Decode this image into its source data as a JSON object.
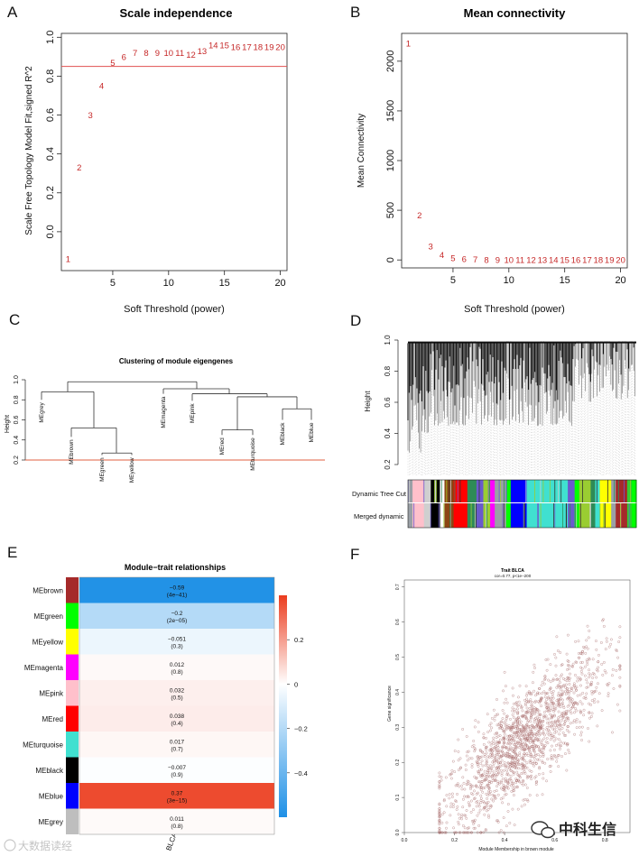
{
  "panels": {
    "A": "A",
    "B": "B",
    "C": "C",
    "D": "D",
    "E": "E",
    "F": "F"
  },
  "chart_data": [
    {
      "id": "A",
      "type": "scatter",
      "title": "Scale independence",
      "xlabel": "Soft Threshold (power)",
      "ylabel": "Scale Free Topology Model Fit,signed R^2",
      "xlim": [
        0.4,
        20.6
      ],
      "ylim": [
        -0.2,
        1.02
      ],
      "xticks": [
        "5",
        "10",
        "15",
        "20"
      ],
      "yticks": [
        "0.0",
        "0.2",
        "0.4",
        "0.6",
        "0.8",
        "1.0"
      ],
      "hline": 0.85,
      "x": [
        1,
        2,
        3,
        4,
        5,
        6,
        7,
        8,
        9,
        10,
        11,
        12,
        13,
        14,
        15,
        16,
        17,
        18,
        19,
        20
      ],
      "y": [
        -0.14,
        0.33,
        0.6,
        0.75,
        0.87,
        0.9,
        0.92,
        0.92,
        0.92,
        0.92,
        0.92,
        0.91,
        0.93,
        0.96,
        0.96,
        0.95,
        0.95,
        0.95,
        0.95,
        0.95
      ],
      "labels": [
        "1",
        "2",
        "3",
        "4",
        "5",
        "6",
        "7",
        "8",
        "9",
        "10",
        "11",
        "12",
        "13",
        "14",
        "15",
        "16",
        "17",
        "18",
        "19",
        "20"
      ]
    },
    {
      "id": "B",
      "type": "scatter",
      "title": "Mean connectivity",
      "xlabel": "Soft Threshold (power)",
      "ylabel": "Mean Connectivity",
      "xlim": [
        0.4,
        20.6
      ],
      "ylim": [
        -80,
        2280
      ],
      "xticks": [
        "5",
        "10",
        "15",
        "20"
      ],
      "yticks": [
        "0",
        "500",
        "1000",
        "1500",
        "2000"
      ],
      "x": [
        1,
        2,
        3,
        4,
        5,
        6,
        7,
        8,
        9,
        10,
        11,
        12,
        13,
        14,
        15,
        16,
        17,
        18,
        19,
        20
      ],
      "y": [
        2180,
        450,
        140,
        50,
        20,
        10,
        5,
        3,
        2,
        1,
        1,
        0,
        0,
        0,
        0,
        0,
        0,
        0,
        0,
        0
      ],
      "labels": [
        "1",
        "2",
        "3",
        "4",
        "5",
        "6",
        "7",
        "8",
        "9",
        "10",
        "11",
        "12",
        "13",
        "14",
        "15",
        "16",
        "17",
        "18",
        "19",
        "20"
      ]
    },
    {
      "id": "C",
      "type": "dendrogram",
      "title": "Clustering of module eigengenes",
      "ylabel": "Height",
      "ylim": [
        0.2,
        1.0
      ],
      "yticks": [
        "0.2",
        "0.4",
        "0.6",
        "0.8",
        "1.0"
      ],
      "cut_height": 0.2,
      "leaves": [
        "MEgrey",
        "MEbrown",
        "MEgreen",
        "MEyellow",
        "MEmagenta",
        "MEpink",
        "MEred",
        "MEturquoise",
        "MEblack",
        "MEblue"
      ]
    },
    {
      "id": "D",
      "type": "dendrogram",
      "ylabel": "Height",
      "ylim": [
        0.2,
        1.0
      ],
      "yticks": [
        "0.2",
        "0.4",
        "0.6",
        "0.8",
        "1.0"
      ],
      "color_rows": [
        "Dynamic Tree Cut",
        "Merged dynamic"
      ],
      "module_colors": [
        "#ffc0cb",
        "#9aa0a6",
        "#000000",
        "#8b4513",
        "#ff0000",
        "#2e8b57",
        "#9acd32",
        "#ff00ff",
        "#0000ff",
        "#40e0d0",
        "#6a5acd",
        "#00ff00",
        "#ffff00",
        "#a52a2a",
        "#32cd32"
      ]
    },
    {
      "id": "E",
      "type": "heatmap",
      "title": "Module−trait relationships",
      "xlabel": "BLCA",
      "rows": [
        "MEbrown",
        "MEgreen",
        "MEyellow",
        "MEmagenta",
        "MEpink",
        "MEred",
        "MEturquoise",
        "MEblack",
        "MEblue",
        "MEgrey"
      ],
      "row_colors": [
        "#a52a2a",
        "#00ff00",
        "#ffff00",
        "#ff00ff",
        "#ffc0cb",
        "#ff0000",
        "#40e0d0",
        "#000000",
        "#0000ff",
        "#bebebe"
      ],
      "values": [
        -0.59,
        -0.2,
        -0.051,
        0.012,
        0.032,
        0.038,
        0.017,
        -0.007,
        0.37,
        0.011
      ],
      "value_labels": [
        "−0.59",
        "−0.2",
        "−0.051",
        "0.012",
        "0.032",
        "0.038",
        "0.017",
        "−0.007",
        "0.37",
        "0.011"
      ],
      "pvalues": [
        "(4e−41)",
        "(2e−05)",
        "(0.3)",
        "(0.8)",
        "(0.5)",
        "(0.4)",
        "(0.7)",
        "(0.9)",
        "(3e−15)",
        "(0.8)"
      ],
      "colorbar_ticks": [
        "0.2",
        "0",
        "−0.2",
        "−0.4"
      ],
      "colorbar_range": [
        -0.6,
        0.4
      ]
    },
    {
      "id": "F",
      "type": "scatter",
      "title": "Trait BLCA",
      "subtitle": "cor=0.77, p<1e−200",
      "xlabel": "Module Membership in brown module",
      "ylabel": "Gene significance",
      "xlim": [
        0.0,
        0.9
      ],
      "ylim": [
        0.0,
        0.72
      ],
      "xticks": [
        "0.0",
        "0.2",
        "0.4",
        "0.6",
        "0.8"
      ],
      "yticks": [
        "0.0",
        "0.1",
        "0.2",
        "0.3",
        "0.4",
        "0.5",
        "0.6",
        "0.7"
      ],
      "n_points": 1600,
      "correlation": 0.77
    }
  ],
  "watermark": {
    "left": "大数据读经",
    "right": "中科生信"
  }
}
